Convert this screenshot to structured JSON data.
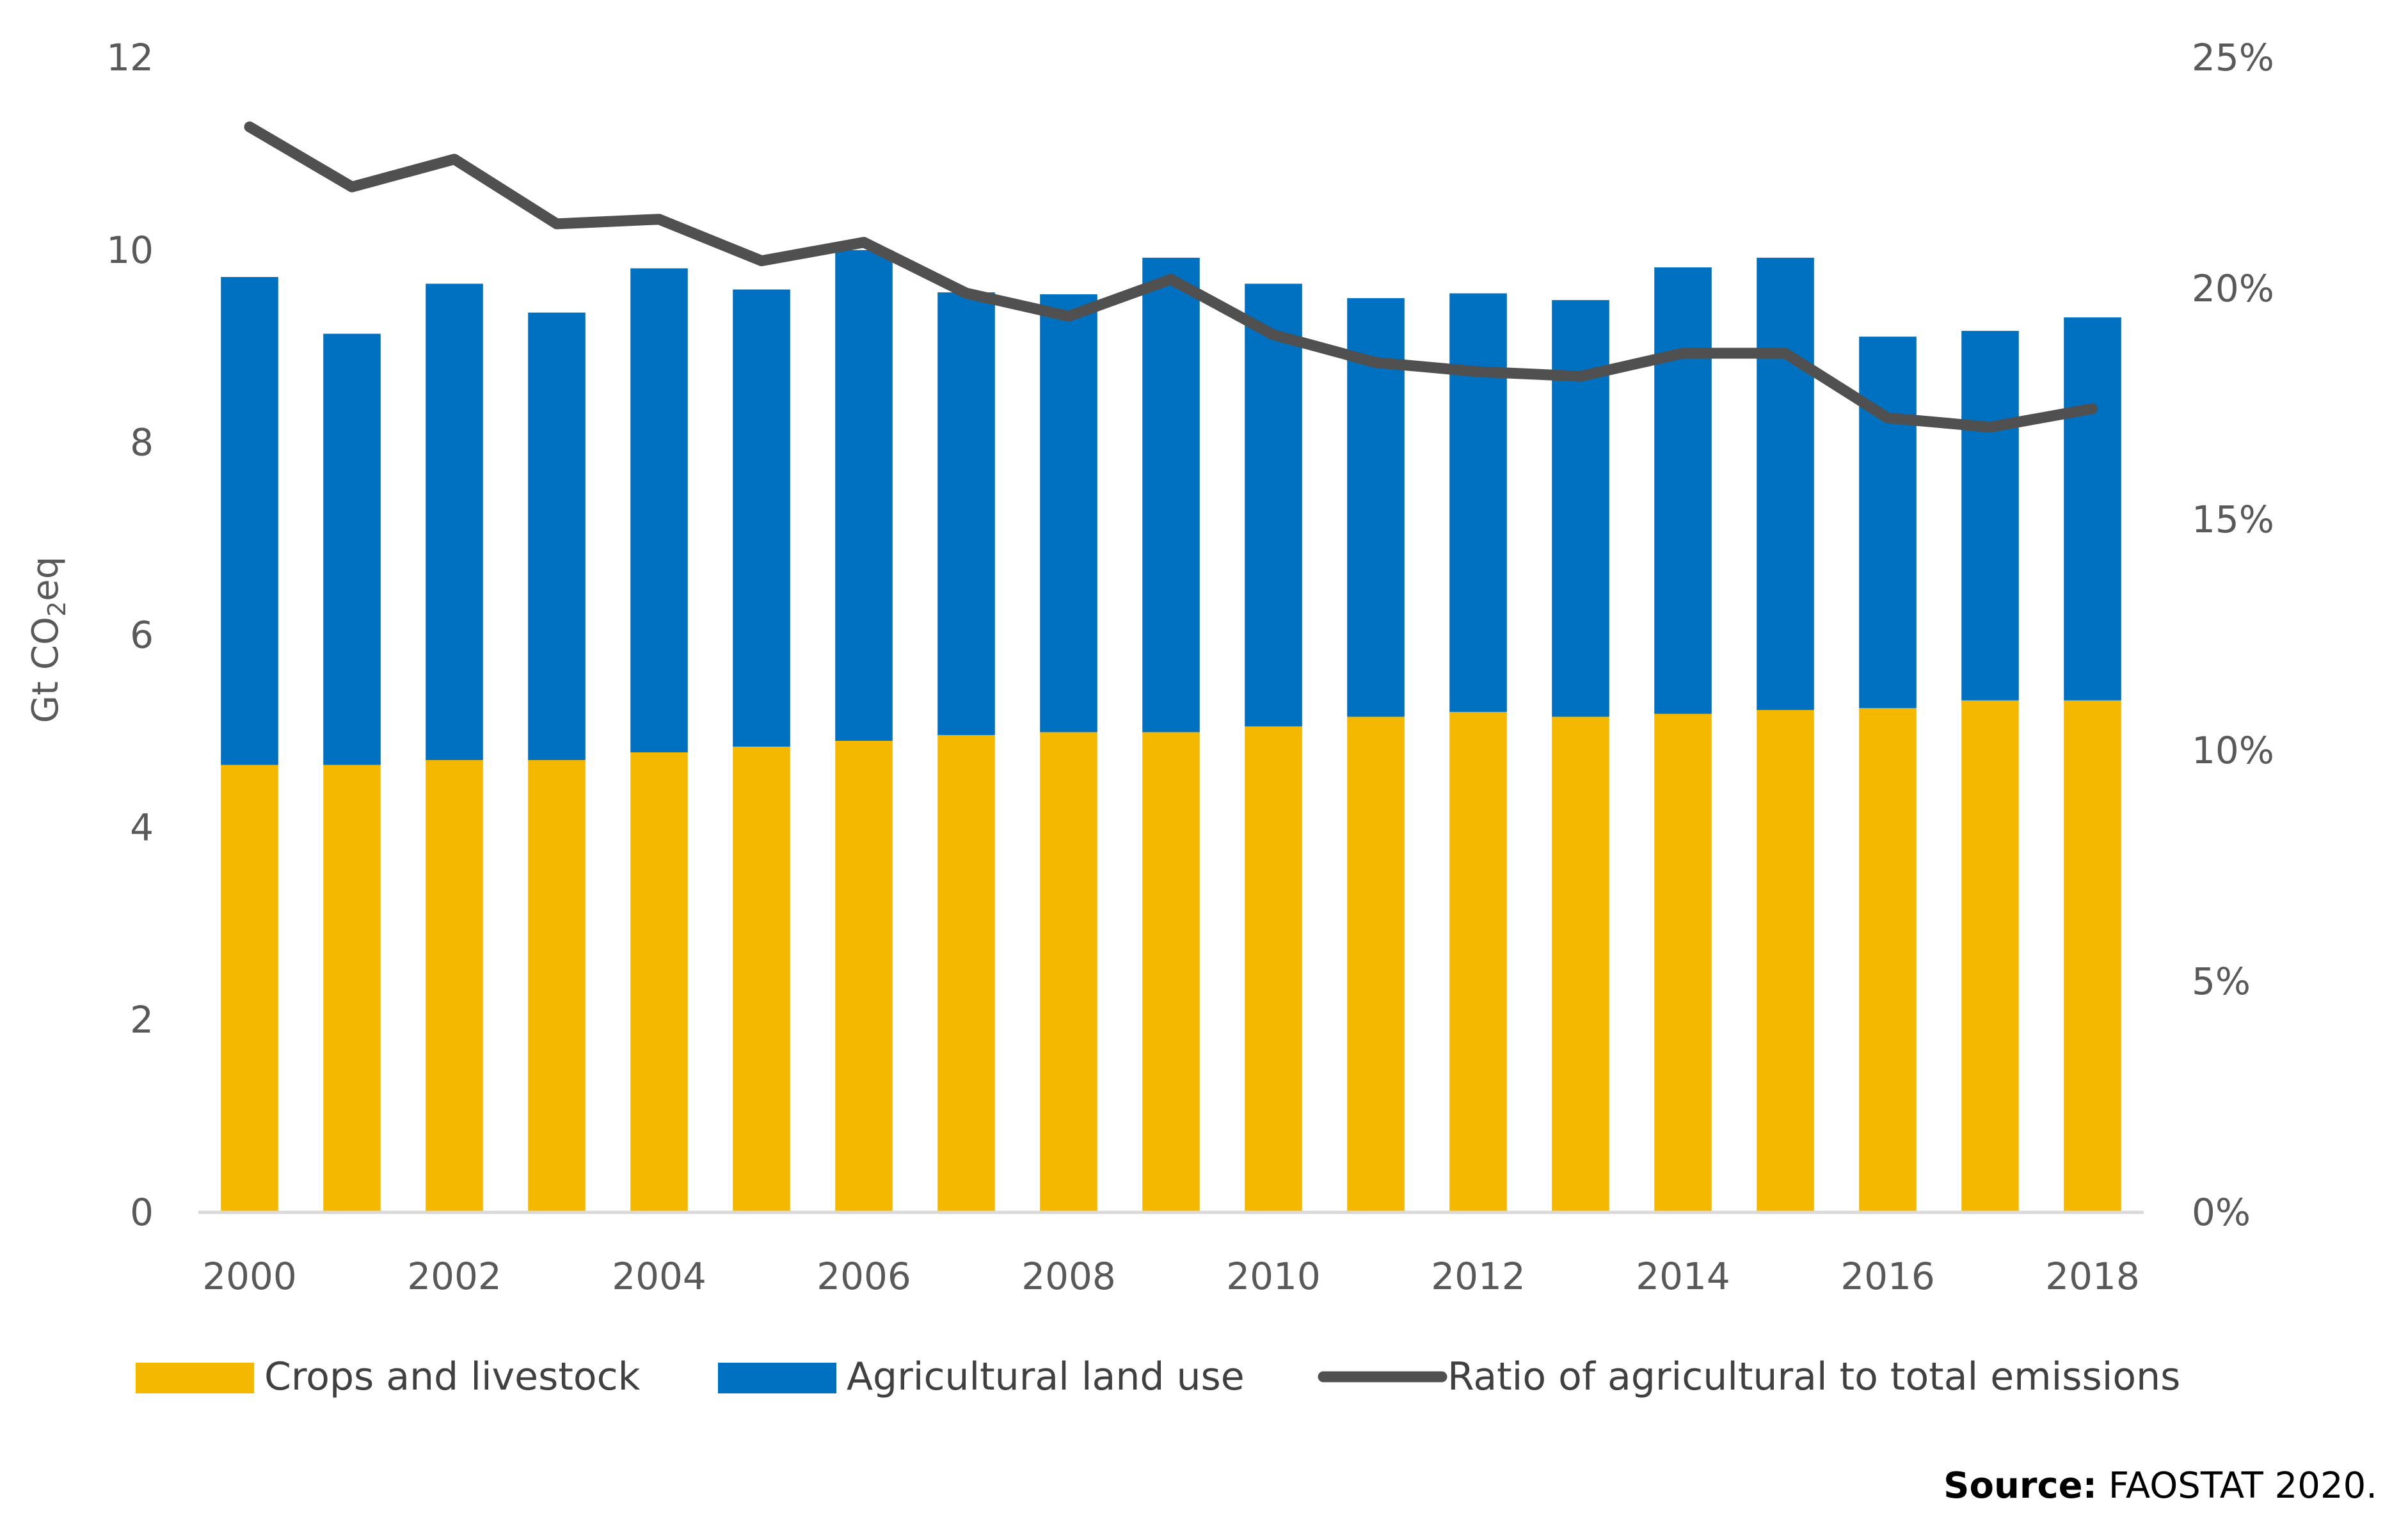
{
  "chart_data": {
    "type": "bar",
    "stacked": true,
    "categories": [
      "2000",
      "2001",
      "2002",
      "2003",
      "2004",
      "2005",
      "2006",
      "2007",
      "2008",
      "2009",
      "2010",
      "2011",
      "2012",
      "2013",
      "2014",
      "2015",
      "2016",
      "2017",
      "2018"
    ],
    "x_tick_labels": [
      "2000",
      "2002",
      "2004",
      "2006",
      "2008",
      "2010",
      "2012",
      "2014",
      "2016",
      "2018"
    ],
    "series": [
      {
        "name": "Crops and livestock",
        "type": "bar",
        "axis": "left",
        "color": "#F5B800",
        "values": [
          4.65,
          4.65,
          4.7,
          4.7,
          4.78,
          4.84,
          4.9,
          4.96,
          4.99,
          4.99,
          5.05,
          5.15,
          5.2,
          5.15,
          5.18,
          5.22,
          5.24,
          5.32,
          5.32
        ]
      },
      {
        "name": "Agricultural land use",
        "type": "bar",
        "axis": "left",
        "color": "#0070C0",
        "values": [
          5.07,
          4.48,
          4.95,
          4.65,
          5.03,
          4.75,
          5.1,
          4.6,
          4.55,
          4.93,
          4.6,
          4.35,
          4.35,
          4.33,
          4.64,
          4.7,
          3.86,
          3.84,
          3.98
        ]
      },
      {
        "name": "Ratio of agricultural to total emissions",
        "type": "line",
        "axis": "right",
        "color": "#505050",
        "values": [
          23.5,
          22.2,
          22.8,
          21.4,
          21.5,
          20.6,
          21.0,
          19.9,
          19.4,
          20.2,
          19.0,
          18.4,
          18.2,
          18.1,
          18.6,
          18.6,
          17.2,
          17.0,
          17.4
        ]
      }
    ],
    "yaxis_left": {
      "label_main": "Gt CO",
      "label_sub": "2",
      "label_end": "eq",
      "range": [
        0,
        12
      ],
      "ticks": [
        "0",
        "2",
        "4",
        "6",
        "8",
        "10",
        "12"
      ]
    },
    "yaxis_right": {
      "range": [
        0,
        25
      ],
      "ticks": [
        "0%",
        "5%",
        "10%",
        "15%",
        "20%",
        "25%"
      ]
    },
    "legend_position": "bottom",
    "grid": false
  },
  "source": {
    "label": "Source:",
    "text": " FAOSTAT 2020."
  }
}
